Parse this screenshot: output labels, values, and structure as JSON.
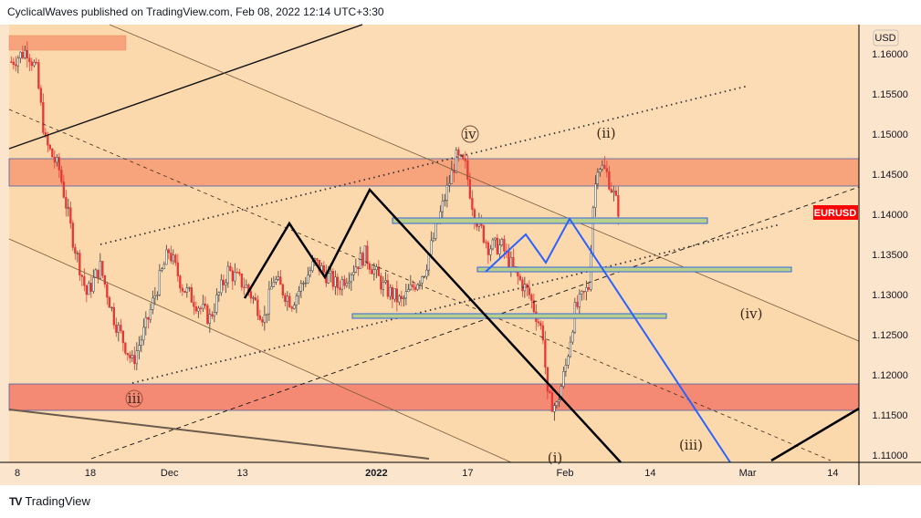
{
  "header": {
    "text": "CyclicalWaves published on TradingView.com, Feb 08, 2022 12:14 UTC+3:30"
  },
  "footer": {
    "logo": "TV",
    "brand": "TradingView"
  },
  "symbol_tag": {
    "text": "EURUSD",
    "color": "#ff0000"
  },
  "currency": "USD",
  "wave_labels": {
    "iv_circled": "iv",
    "ii": "(ii)",
    "iii_circled": "iii",
    "iv": "(iv)",
    "iii": "(iii)",
    "i": "(i)"
  },
  "chart_data": {
    "type": "candlestick",
    "title": "EURUSD",
    "ylabel": "USD",
    "ylim": [
      1.109,
      1.1635
    ],
    "yticks": [
      "1.16000",
      "1.15500",
      "1.15000",
      "1.14500",
      "1.14000",
      "1.13500",
      "1.13000",
      "1.12500",
      "1.12000",
      "1.11500",
      "1.11000"
    ],
    "xticks": [
      {
        "label": "8",
        "day": 0
      },
      {
        "label": "18",
        "day": 12
      },
      {
        "label": "Dec",
        "day": 25
      },
      {
        "label": "13",
        "day": 37
      },
      {
        "label": "2022",
        "day": 59
      },
      {
        "label": "17",
        "day": 74
      },
      {
        "label": "Feb",
        "day": 90
      },
      {
        "label": "14",
        "day": 104
      },
      {
        "label": "Mar",
        "day": 120
      },
      {
        "label": "14",
        "day": 134
      }
    ],
    "x_unit": "days since Nov 8 2021 (approx.)",
    "price_path": [
      [
        -1,
        1.159
      ],
      [
        1.6,
        1.1605
      ],
      [
        3.1,
        1.158
      ],
      [
        4.6,
        1.149
      ],
      [
        6.9,
        1.1455
      ],
      [
        9.1,
        1.137
      ],
      [
        11.4,
        1.13
      ],
      [
        13.6,
        1.1335
      ],
      [
        15.9,
        1.127
      ],
      [
        18.9,
        1.1215
      ],
      [
        21.1,
        1.126
      ],
      [
        23.4,
        1.132
      ],
      [
        24.9,
        1.1355
      ],
      [
        27.1,
        1.131
      ],
      [
        31.6,
        1.127
      ],
      [
        34.6,
        1.133
      ],
      [
        37.6,
        1.131
      ],
      [
        40.6,
        1.127
      ],
      [
        42.1,
        1.132
      ],
      [
        45.1,
        1.129
      ],
      [
        48.9,
        1.134
      ],
      [
        52.6,
        1.131
      ],
      [
        57.1,
        1.135
      ],
      [
        60.1,
        1.131
      ],
      [
        63.1,
        1.129
      ],
      [
        66.9,
        1.133
      ],
      [
        70.6,
        1.143
      ],
      [
        72.1,
        1.147
      ],
      [
        73.6,
        1.146
      ],
      [
        75.1,
        1.14
      ],
      [
        77.4,
        1.136
      ],
      [
        79.6,
        1.136
      ],
      [
        81.9,
        1.1325
      ],
      [
        84.1,
        1.13
      ],
      [
        86.4,
        1.125
      ],
      [
        87.1,
        1.117
      ],
      [
        88.6,
        1.116
      ],
      [
        90.1,
        1.121
      ],
      [
        91.6,
        1.128
      ],
      [
        93.9,
        1.131
      ],
      [
        94.6,
        1.141
      ],
      [
        95.4,
        1.1465
      ],
      [
        96.9,
        1.145
      ],
      [
        98.8,
        1.1405
      ]
    ],
    "zones": [
      {
        "from": 1.1435,
        "to": 1.147,
        "color": "#f7a47c"
      },
      {
        "from": 1.1157,
        "to": 1.119,
        "color": "#f58a74"
      }
    ],
    "colors": {
      "up": "#26a69a",
      "down": "#ef5350",
      "background": "#fcdcb4"
    }
  }
}
